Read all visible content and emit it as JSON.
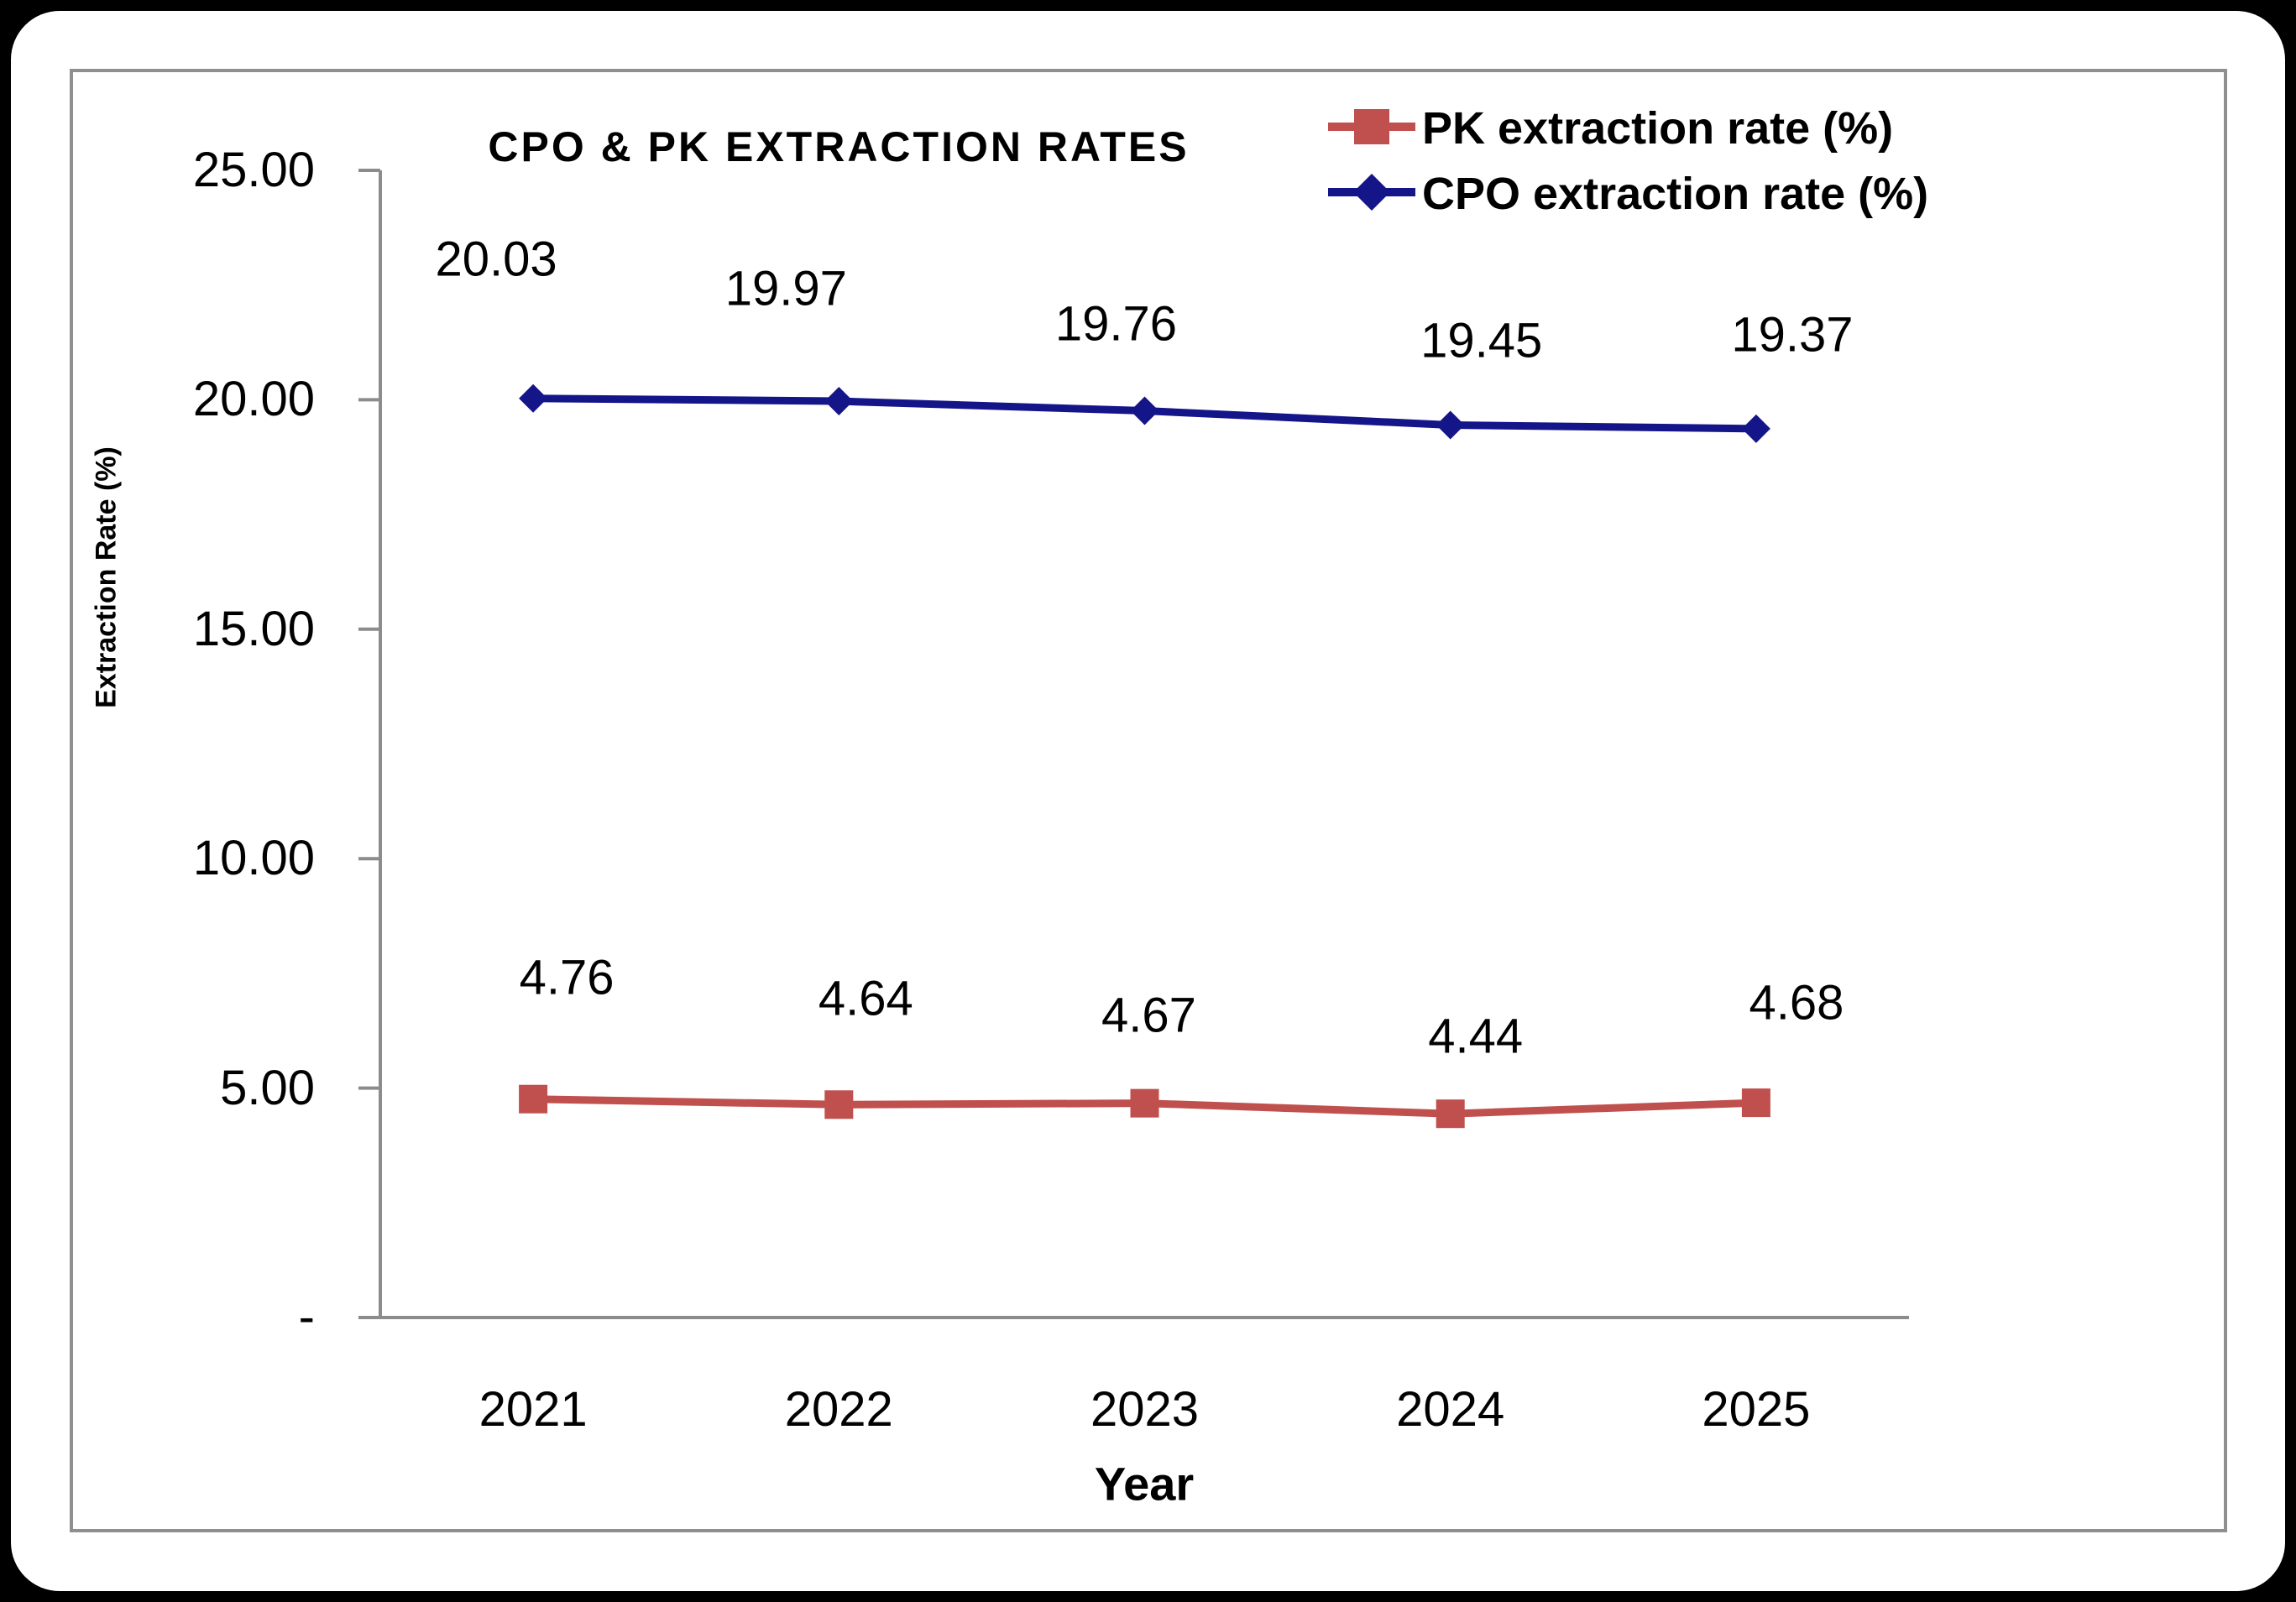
{
  "chart_data": {
    "type": "line",
    "title": "CPO & PK EXTRACTION RATES",
    "xlabel": "Year",
    "ylabel": "Extraction Rate (%)",
    "categories": [
      "2021",
      "2022",
      "2023",
      "2024",
      "2025"
    ],
    "series": [
      {
        "name": "PK extraction rate (%)",
        "values": [
          4.76,
          4.64,
          4.67,
          4.44,
          4.68
        ],
        "labels": [
          "4.76",
          "4.64",
          "4.67",
          "4.44",
          "4.68"
        ],
        "color": "#C0504D",
        "marker": "square"
      },
      {
        "name": "CPO extraction rate (%)",
        "values": [
          20.03,
          19.97,
          19.76,
          19.45,
          19.37
        ],
        "labels": [
          "20.03",
          "19.97",
          "19.76",
          "19.45",
          "19.37"
        ],
        "color": "#15158A",
        "marker": "diamond"
      }
    ],
    "yticks": [
      {
        "label": "25.00",
        "value": 25
      },
      {
        "label": "20.00",
        "value": 20
      },
      {
        "label": "15.00",
        "value": 15
      },
      {
        "label": "10.00",
        "value": 10
      },
      {
        "label": "5.00",
        "value": 5
      },
      {
        "label": "-",
        "value": 0
      }
    ],
    "ylim": [
      0,
      25
    ],
    "grid": false,
    "legend_position": "top-right",
    "axis_color": "#8C8C8C",
    "text_color": "#000000"
  }
}
